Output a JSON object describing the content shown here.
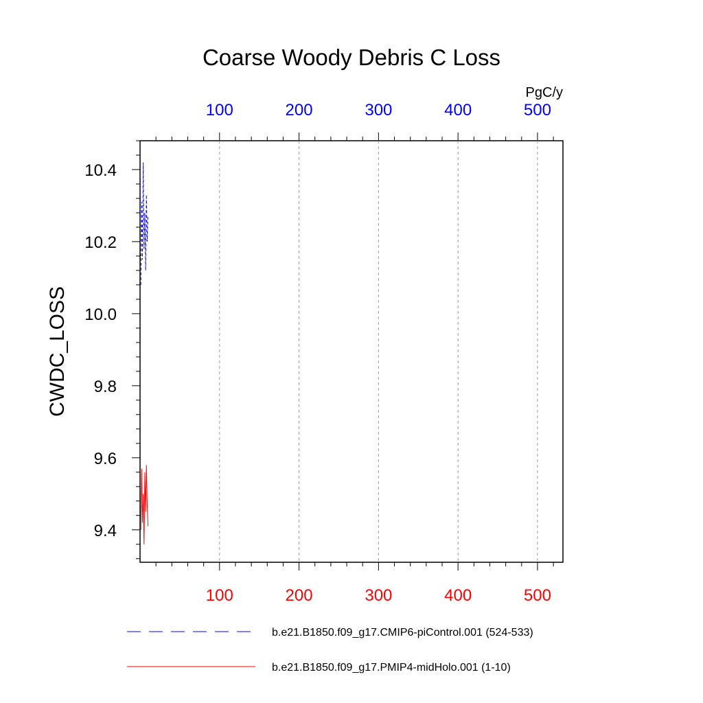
{
  "chart_data": {
    "type": "line",
    "title": "Coarse Woody Debris C Loss",
    "ylabel": "CWDC_LOSS",
    "units": "PgC/y",
    "ylim": [
      9.31,
      10.48
    ],
    "yticks": [
      "9.4",
      "9.6",
      "9.8",
      "10.0",
      "10.2",
      "10.4"
    ],
    "top_axis": {
      "color": "#0000ff",
      "xlim": [
        0,
        532
      ],
      "ticks": [
        "100",
        "200",
        "300",
        "400",
        "500"
      ]
    },
    "bottom_axis": {
      "color": "#ff0000",
      "xlim": [
        0,
        532
      ],
      "ticks": [
        "100",
        "200",
        "300",
        "400",
        "500"
      ]
    },
    "grid": "vertical dashed",
    "series": [
      {
        "name": "b.e21.B1850.f09_g17.CMIP6-piControl.001 (524-533)",
        "color": "#0000ff",
        "dash": "dashed",
        "axis": "top",
        "x": [
          1,
          2,
          3,
          4,
          5,
          6,
          7,
          8,
          9,
          10
        ],
        "y": [
          10.08,
          10.31,
          10.15,
          10.42,
          10.18,
          10.28,
          10.12,
          10.33,
          10.2,
          10.27
        ]
      },
      {
        "name": "b.e21.B1850.f09_g17.PMIP4-midHolo.001 (1-10)",
        "color": "#ff0000",
        "dash": "solid",
        "axis": "bottom",
        "x": [
          1,
          2,
          3,
          4,
          5,
          6,
          7,
          8,
          9,
          10
        ],
        "y": [
          9.4,
          9.57,
          9.42,
          9.5,
          9.36,
          9.56,
          9.45,
          9.58,
          9.47,
          9.41
        ]
      }
    ]
  }
}
